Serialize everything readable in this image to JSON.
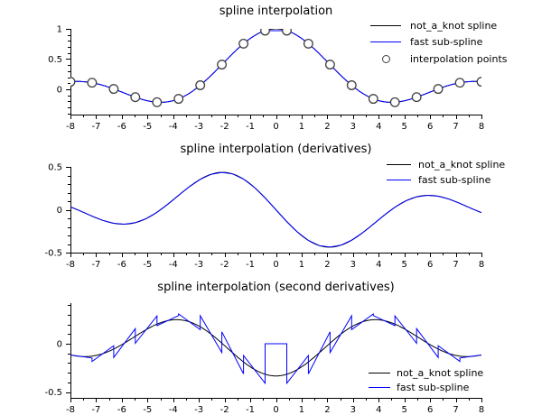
{
  "colors": {
    "not_a_knot": "#000000",
    "fast_sub_spline": "#0000ff",
    "marker_edge": "#404040",
    "marker_fill": "#ffffff",
    "axis": "#000000",
    "text": "#000000",
    "background": "#ffffff"
  },
  "chart_data": [
    {
      "type": "line",
      "title": "spline interpolation",
      "x_range": [
        -8,
        8
      ],
      "x_tick_values": [
        -8,
        -7,
        -6,
        -5,
        -4,
        -3,
        -2,
        -1,
        0,
        1,
        2,
        3,
        4,
        5,
        6,
        7,
        8
      ],
      "x_tick_labels": [
        "-8",
        "-7",
        "-6",
        "-5",
        "-4",
        "-3",
        "-2",
        "-1",
        "0",
        "1",
        "2",
        "3",
        "4",
        "5",
        "6",
        "7",
        "8"
      ],
      "x_minor_step": 0.5,
      "y_range": [
        -0.42,
        1.0
      ],
      "y_tick_values": [
        0,
        0.5,
        1
      ],
      "y_tick_labels": [
        "0",
        "0.5",
        "1"
      ],
      "y_minor_step": 0.1,
      "grid": false,
      "legend_position": "upper right",
      "series": [
        {
          "name": "not_a_knot spline",
          "color": "#000000",
          "style": "line",
          "function": "sinc",
          "render": "fine"
        },
        {
          "name": "fast sub-spline",
          "color": "#0000ff",
          "style": "line",
          "function": "sinc_flat_top",
          "render": "fine"
        },
        {
          "name": "interpolation points",
          "style": "circle_marker",
          "marker_edge": "#404040",
          "points": "interpolation_points"
        }
      ],
      "knots": {
        "start": -8,
        "end": 8,
        "count": 20,
        "spacing": 0.8421
      },
      "interpolation_points": {
        "x": [
          -8,
          -7.1579,
          -6.3158,
          -5.4737,
          -4.6316,
          -3.7895,
          -2.9474,
          -2.1053,
          -1.2632,
          -0.4211,
          0.4211,
          1.2632,
          2.1053,
          2.9474,
          3.7895,
          4.6316,
          5.4737,
          6.3158,
          7.1579,
          8
        ],
        "y": [
          0.1237,
          0.1073,
          0.0052,
          -0.1322,
          -0.2152,
          -0.1593,
          0.0655,
          0.4088,
          0.7542,
          0.9708,
          0.9708,
          0.7542,
          0.4088,
          0.0655,
          -0.1593,
          -0.2152,
          -0.1322,
          0.0052,
          0.1073,
          0.1237
        ]
      }
    },
    {
      "type": "line",
      "title": "spline interpolation (derivatives)",
      "x_range": [
        -8,
        8
      ],
      "x_tick_values": [
        -8,
        -7,
        -6,
        -5,
        -4,
        -3,
        -2,
        -1,
        0,
        1,
        2,
        3,
        4,
        5,
        6,
        7,
        8
      ],
      "x_tick_labels": [
        "-8",
        "-7",
        "-6",
        "-5",
        "-4",
        "-3",
        "-2",
        "-1",
        "0",
        "1",
        "2",
        "3",
        "4",
        "5",
        "6",
        "7",
        "8"
      ],
      "x_minor_step": 0.5,
      "y_range": [
        -0.5,
        0.5
      ],
      "y_tick_values": [
        -0.5,
        0,
        0.5
      ],
      "y_tick_labels": [
        "-0.5",
        "0",
        "0.5"
      ],
      "y_minor_step": 0.1,
      "grid": false,
      "legend_position": "upper right",
      "series": [
        {
          "name": "not_a_knot spline",
          "color": "#000000",
          "style": "line",
          "function": "sinc_derivative",
          "render": "fine"
        },
        {
          "name": "fast sub-spline",
          "color": "#0000ff",
          "style": "line",
          "function": "sinc_derivative",
          "render": "pwl"
        }
      ],
      "knots": {
        "start": -8,
        "end": 8,
        "count": 20,
        "spacing": 0.8421
      }
    },
    {
      "type": "line",
      "title": "spline interpolation (second derivatives)",
      "x_range": [
        -8,
        8
      ],
      "x_tick_values": [
        -8,
        -7,
        -6,
        -5,
        -4,
        -3,
        -2,
        -1,
        0,
        1,
        2,
        3,
        4,
        5,
        6,
        7,
        8
      ],
      "x_tick_labels": [
        "-8",
        "-7",
        "-6",
        "-5",
        "-4",
        "-3",
        "-2",
        "-1",
        "0",
        "1",
        "2",
        "3",
        "4",
        "5",
        "6",
        "7",
        "8"
      ],
      "x_minor_step": 0.5,
      "y_range": [
        -0.56,
        0.42
      ],
      "y_tick_values": [
        -0.5,
        0
      ],
      "y_tick_labels": [
        "-0.5",
        "0"
      ],
      "y_minor_step": 0.1,
      "grid": false,
      "legend_position": "lower right",
      "series": [
        {
          "name": "not_a_knot spline",
          "color": "#000000",
          "style": "line",
          "function": "sinc_second_derivative",
          "render": "fine"
        },
        {
          "name": "fast sub-spline",
          "color": "#0000ff",
          "style": "line",
          "function": "sinc_second_derivative",
          "render": "saw",
          "saw_slope_factor": 2.2
        }
      ],
      "knots": {
        "start": -8,
        "end": 8,
        "count": 20,
        "spacing": 0.8421
      }
    }
  ]
}
